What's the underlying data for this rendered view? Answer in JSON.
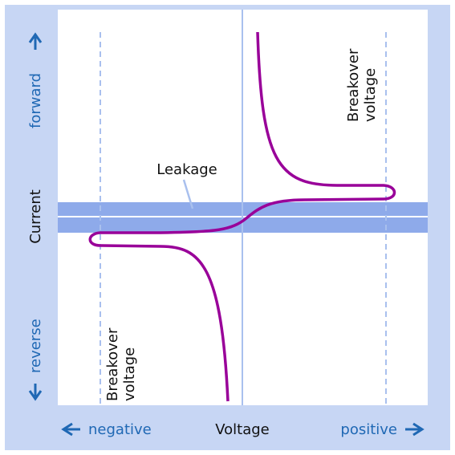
{
  "axes": {
    "y_label": "Current",
    "y_top": "forward",
    "y_bottom": "reverse",
    "x_label": "Voltage",
    "x_left": "negative",
    "x_right": "positive"
  },
  "annotations": {
    "leakage": "Leakage",
    "breakover_right": [
      "Breakover",
      "voltage"
    ],
    "breakover_left": [
      "Breakover",
      "voltage"
    ]
  }
}
